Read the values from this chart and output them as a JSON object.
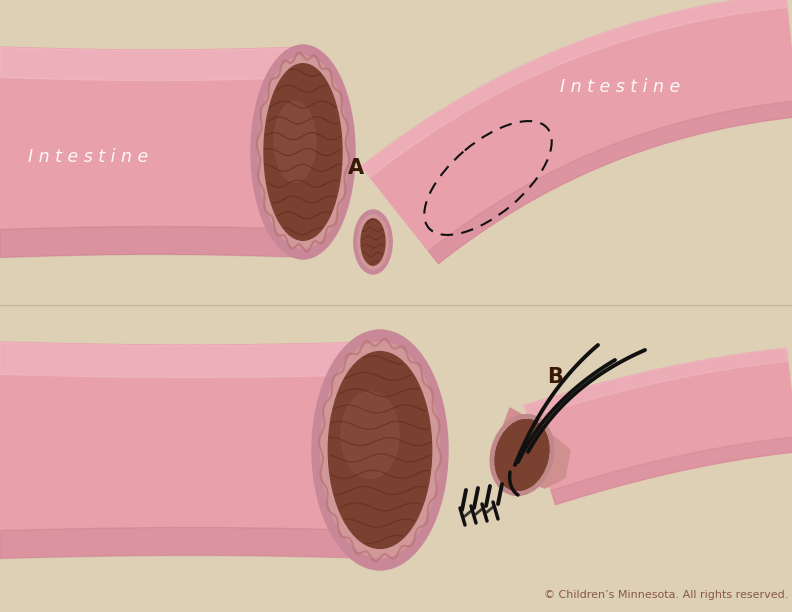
{
  "bg_color": "#ddd0b5",
  "tube_pink": "#e8a0aa",
  "tube_light": "#f2bfc8",
  "tube_dark": "#c07888",
  "tube_rim": "#c88898",
  "lumen_brown": "#7a4030",
  "lumen_mid": "#8a5040",
  "lumen_light": "#9a6050",
  "lumen_fold": "#5a2818",
  "label_white": "#ffffff",
  "label_dark": "#3a1808",
  "copyright_color": "#8a5848",
  "copyright_text": "© Children’s Minnesota. All rights reserved.",
  "intestine_label": "I n t e s t i n e"
}
